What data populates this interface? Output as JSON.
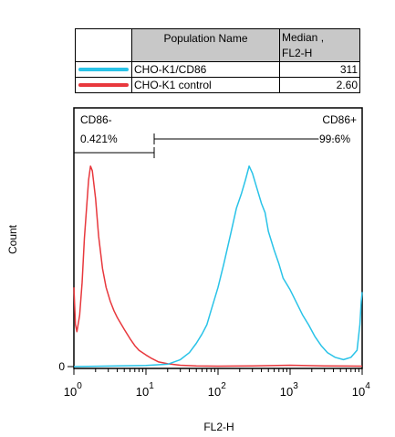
{
  "legend_table": {
    "headers": {
      "name": "Population Name",
      "median_line1": "Median ,",
      "median_line2": "FL2-H"
    },
    "rows": [
      {
        "name": "CHO-K1/CD86",
        "median": "311",
        "color": "#29c3e8"
      },
      {
        "name": "CHO-K1 control",
        "median": "2.60",
        "color": "#e8383d"
      }
    ]
  },
  "chart_data": {
    "type": "area",
    "xlabel": "FL2-H",
    "ylabel": "Count",
    "x_scale": "log",
    "xlim": [
      1,
      10000
    ],
    "x_ticks": [
      {
        "value": 1,
        "base": "10",
        "exp": "0"
      },
      {
        "value": 10,
        "base": "10",
        "exp": "1"
      },
      {
        "value": 100,
        "base": "10",
        "exp": "2"
      },
      {
        "value": 1000,
        "base": "10",
        "exp": "3"
      },
      {
        "value": 10000,
        "base": "10",
        "exp": "4"
      }
    ],
    "y_ticks": [
      {
        "value": 0,
        "label": "0"
      }
    ],
    "ylim": [
      0,
      100
    ],
    "series": [
      {
        "name": "CHO-K1 control",
        "color": "#e8383d",
        "x": [
          1,
          1.05,
          1.1,
          1.2,
          1.3,
          1.4,
          1.5,
          1.6,
          1.7,
          1.8,
          2.0,
          2.2,
          2.5,
          2.8,
          3.2,
          3.6,
          4.0,
          5.0,
          6.0,
          7.0,
          8.0,
          10,
          12,
          15,
          20,
          30,
          50,
          100,
          300,
          1000,
          3000,
          10000
        ],
        "y": [
          34,
          18,
          15,
          22,
          36,
          55,
          68,
          80,
          86,
          84,
          72,
          56,
          42,
          34,
          28,
          24,
          21,
          16,
          12,
          9,
          7,
          5,
          3.5,
          2,
          1.2,
          0.6,
          0.3,
          0.2,
          0.3,
          0.6,
          0.3,
          0.2
        ]
      },
      {
        "name": "CHO-K1/CD86",
        "color": "#29c3e8",
        "x": [
          1,
          10,
          20,
          30,
          40,
          50,
          60,
          70,
          80,
          100,
          120,
          150,
          180,
          210,
          240,
          270,
          300,
          350,
          400,
          450,
          500,
          600,
          700,
          800,
          1000,
          1200,
          1500,
          1800,
          2200,
          2700,
          3300,
          4200,
          5500,
          7000,
          8500,
          9300,
          9700,
          10000
        ],
        "y": [
          0,
          0.5,
          1,
          3,
          6,
          10,
          14,
          18,
          24,
          34,
          44,
          57,
          68,
          74,
          80,
          86,
          83,
          76,
          70,
          66,
          58,
          50,
          44,
          38,
          33,
          28,
          22,
          18,
          13,
          9,
          6,
          4,
          3,
          4,
          7,
          18,
          28,
          32
        ]
      }
    ],
    "gates": [
      {
        "label": "CD86-",
        "percent": "0.421%",
        "x_start": 1,
        "x_end": 13
      },
      {
        "label": "CD86+",
        "percent": "99.6%",
        "x_start": 13,
        "x_end": 10000
      }
    ]
  }
}
